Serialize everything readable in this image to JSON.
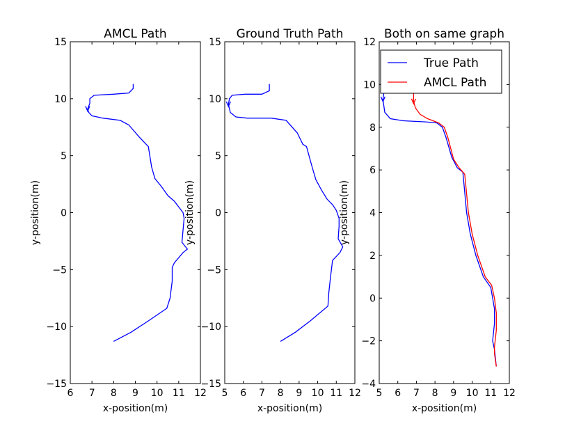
{
  "chart_data": [
    {
      "type": "line",
      "title": "AMCL Path",
      "xlabel": "x-position(m)",
      "ylabel": "y-position(m)",
      "xlim": [
        6,
        12
      ],
      "ylim": [
        -15,
        15
      ],
      "xticks": [
        "6",
        "7",
        "8",
        "9",
        "10",
        "11",
        "12"
      ],
      "yticks": [
        "15",
        "10",
        "5",
        "0",
        "−5",
        "−10",
        "−15"
      ],
      "grid": false,
      "series": [
        {
          "color": "#0000ff",
          "x": [
            8.0,
            8.8,
            9.6,
            10.45,
            10.6,
            10.7,
            10.7,
            10.8,
            11.2,
            11.4,
            11.15,
            11.2,
            11.25,
            11.2,
            10.8,
            10.5,
            10.2,
            9.9,
            9.75,
            9.6,
            9.5,
            9.2,
            8.7,
            8.3,
            7.5,
            7.0,
            6.85,
            6.8,
            6.9,
            6.9,
            7.1,
            8.0,
            8.7,
            8.9,
            8.9
          ],
          "y": [
            -11.3,
            -10.5,
            -9.5,
            -8.4,
            -7.5,
            -6.0,
            -4.8,
            -4.4,
            -3.5,
            -3.2,
            -2.6,
            -1.5,
            -0.5,
            0.0,
            1.0,
            1.5,
            2.3,
            3.0,
            4.0,
            5.8,
            6.0,
            6.6,
            7.7,
            8.1,
            8.3,
            8.5,
            8.8,
            9.1,
            9.6,
            10.0,
            10.3,
            10.4,
            10.5,
            10.9,
            11.3
          ]
        }
      ]
    },
    {
      "type": "line",
      "title": "Ground Truth Path",
      "xlabel": "x-position(m)",
      "ylabel": "y-position(m)",
      "xlim": [
        5,
        12
      ],
      "ylim": [
        -15,
        15
      ],
      "xticks": [
        "5",
        "6",
        "7",
        "8",
        "9",
        "10",
        "11",
        "12"
      ],
      "yticks": [
        "15",
        "10",
        "5",
        "0",
        "−5",
        "−10",
        "−15"
      ],
      "grid": false,
      "series": [
        {
          "color": "#0000ff",
          "x": [
            8.0,
            8.8,
            9.6,
            10.55,
            10.6,
            10.7,
            10.8,
            11.2,
            11.35,
            11.1,
            11.15,
            11.15,
            11.0,
            10.8,
            10.5,
            10.2,
            9.9,
            9.7,
            9.4,
            9.2,
            8.9,
            8.3,
            7.5,
            6.2,
            5.6,
            5.3,
            5.2,
            5.25,
            5.4,
            6.1,
            7.0,
            7.4,
            7.4
          ],
          "y": [
            -11.3,
            -10.5,
            -9.5,
            -8.2,
            -7.0,
            -5.5,
            -4.2,
            -3.5,
            -3.0,
            -2.3,
            -1.2,
            -0.5,
            0.2,
            0.7,
            1.2,
            2.0,
            2.9,
            4.0,
            5.8,
            6.0,
            7.0,
            8.1,
            8.3,
            8.3,
            8.4,
            8.8,
            9.5,
            10.0,
            10.3,
            10.4,
            10.4,
            10.7,
            11.3
          ]
        }
      ]
    },
    {
      "type": "line",
      "title": "Both on same graph",
      "xlabel": "x-position(m)",
      "ylabel": "y-position(m)",
      "xlim": [
        5,
        12
      ],
      "ylim": [
        -4,
        12
      ],
      "xticks": [
        "5",
        "6",
        "7",
        "8",
        "9",
        "10",
        "11",
        "12"
      ],
      "yticks": [
        "12",
        "10",
        "8",
        "6",
        "4",
        "2",
        "0",
        "−2",
        "−4"
      ],
      "grid": false,
      "legend": "upper-left",
      "series": [
        {
          "name": "True Path",
          "color": "#0000ff",
          "x": [
            11.3,
            11.2,
            11.1,
            11.2,
            11.2,
            11.1,
            11.0,
            10.6,
            10.2,
            9.9,
            9.7,
            9.5,
            9.2,
            8.9,
            8.6,
            8.4,
            8.1,
            7.5,
            6.3,
            5.6,
            5.3,
            5.2,
            5.25
          ],
          "y": [
            -3.2,
            -2.4,
            -2.0,
            -1.2,
            -0.5,
            0.0,
            0.5,
            1.0,
            2.0,
            3.0,
            4.0,
            5.9,
            6.1,
            6.6,
            7.5,
            8.0,
            8.2,
            8.25,
            8.3,
            8.4,
            8.7,
            9.3,
            9.6
          ]
        },
        {
          "name": "AMCL Path",
          "color": "#ff0000",
          "x": [
            11.3,
            11.2,
            11.2,
            11.3,
            11.3,
            11.2,
            11.05,
            10.7,
            10.3,
            10.0,
            9.8,
            9.6,
            9.3,
            9.0,
            8.7,
            8.5,
            8.2,
            7.9,
            7.6,
            7.2,
            6.95,
            6.85,
            6.85,
            6.85
          ],
          "y": [
            -3.2,
            -2.6,
            -2.3,
            -1.5,
            -0.7,
            0.0,
            0.6,
            1.0,
            2.0,
            3.0,
            4.0,
            5.8,
            6.1,
            6.5,
            7.5,
            8.0,
            8.2,
            8.3,
            8.4,
            8.6,
            8.9,
            9.2,
            9.4,
            9.6
          ]
        }
      ]
    }
  ]
}
